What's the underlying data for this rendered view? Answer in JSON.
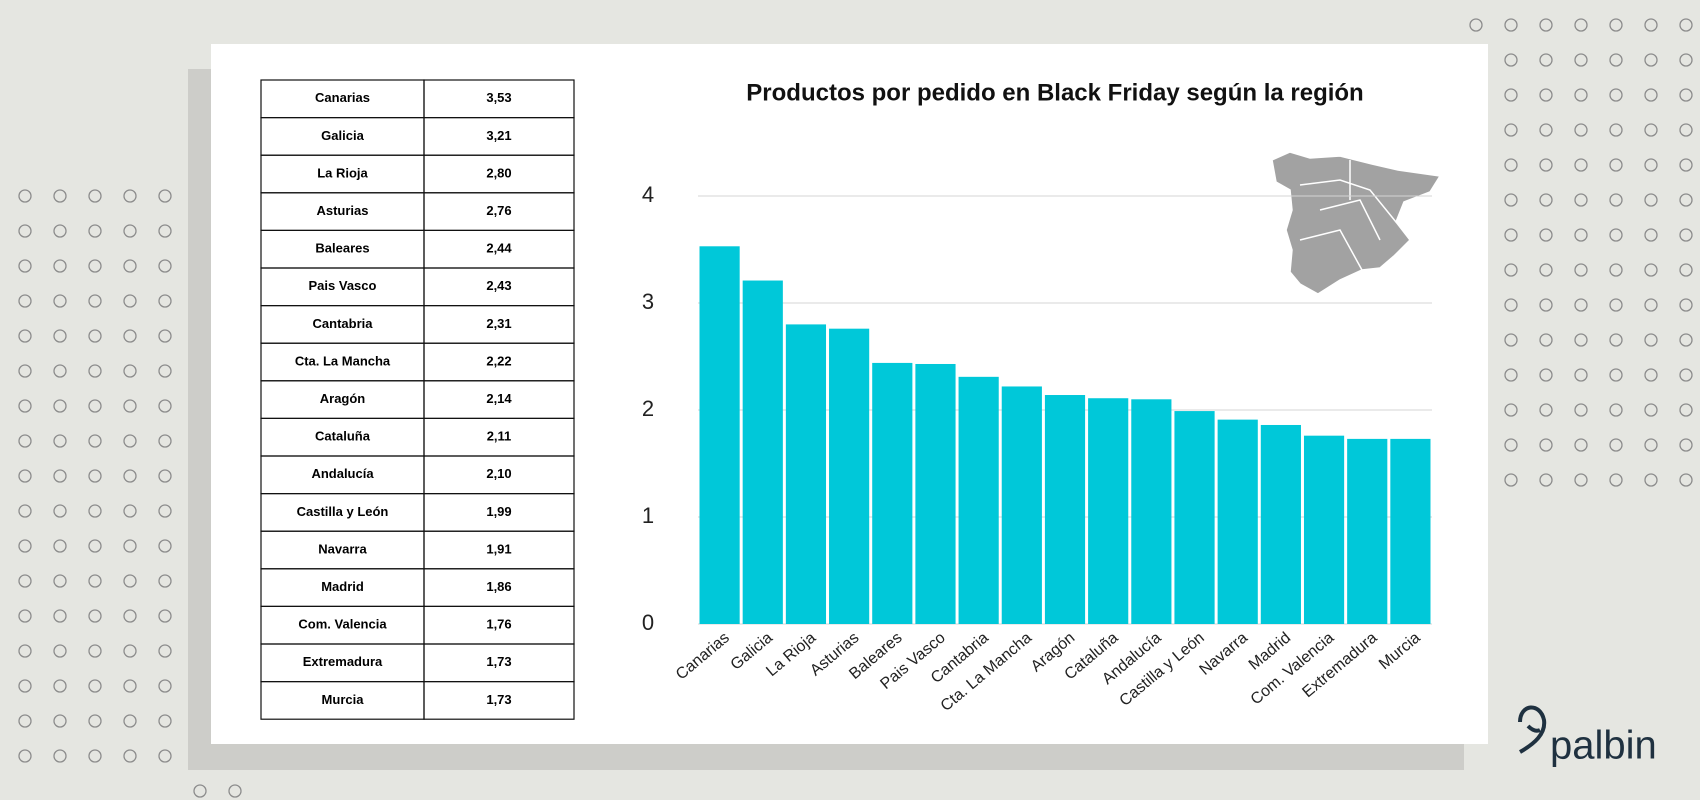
{
  "table": {
    "rows": [
      [
        "Canarias",
        "3,53"
      ],
      [
        "Galicia",
        "3,21"
      ],
      [
        "La Rioja",
        "2,80"
      ],
      [
        "Asturias",
        "2,76"
      ],
      [
        "Baleares",
        "2,44"
      ],
      [
        "Pais Vasco",
        "2,43"
      ],
      [
        "Cantabria",
        "2,31"
      ],
      [
        "Cta. La Mancha",
        "2,22"
      ],
      [
        "Aragón",
        "2,14"
      ],
      [
        "Cataluña",
        "2,11"
      ],
      [
        "Andalucía",
        "2,10"
      ],
      [
        "Castilla y León",
        "1,99"
      ],
      [
        "Navarra",
        "1,91"
      ],
      [
        "Madrid",
        "1,86"
      ],
      [
        "Com. Valencia",
        "1,76"
      ],
      [
        "Extremadura",
        "1,73"
      ],
      [
        "Murcia",
        "1,73"
      ]
    ]
  },
  "chart_data": {
    "type": "bar",
    "title": "Productos por pedido en Black Friday según la región",
    "categories": [
      "Canarias",
      "Galicia",
      "La Rioja",
      "Asturias",
      "Baleares",
      "Pais Vasco",
      "Cantabria",
      "Cta. La Mancha",
      "Aragón",
      "Cataluña",
      "Andalucía",
      "Castilla y León",
      "Navarra",
      "Madrid",
      "Com. Valencia",
      "Extremadura",
      "Murcia"
    ],
    "values": [
      3.53,
      3.21,
      2.8,
      2.76,
      2.44,
      2.43,
      2.31,
      2.22,
      2.14,
      2.11,
      2.1,
      1.99,
      1.91,
      1.86,
      1.76,
      1.73,
      1.73
    ],
    "color": "#00c8d9",
    "ylim": [
      0,
      4
    ],
    "yticks": [
      0,
      1,
      2,
      3,
      4
    ],
    "grid": true
  },
  "logo": "palbin"
}
